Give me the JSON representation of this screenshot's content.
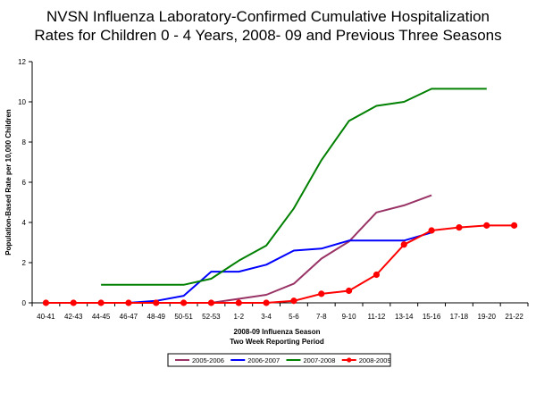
{
  "chart_data": {
    "type": "line",
    "title_line1": "NVSN Influenza Laboratory-Confirmed Cumulative Hospitalization",
    "title_line2": "Rates for Children 0 - 4 Years, 2008- 09 and Previous Three Seasons",
    "xlabel_line1": "2008-09 Influenza Season",
    "xlabel_line2": "Two Week Reporting Period",
    "ylabel": "Population-Based Rate per 10,000 Children",
    "categories": [
      "40-41",
      "42-43",
      "44-45",
      "46-47",
      "48-49",
      "50-51",
      "52-53",
      "1-2",
      "3-4",
      "5-6",
      "7-8",
      "9-10",
      "11-12",
      "13-14",
      "15-16",
      "17-18",
      "19-20",
      "21-22"
    ],
    "ylim": [
      0,
      12
    ],
    "yticks": [
      "0",
      "2",
      "4",
      "6",
      "8",
      "10",
      "12"
    ],
    "grid": false,
    "legend_position": "bottom",
    "series": [
      {
        "name": "2005-2006",
        "color": "#993366",
        "markers": false,
        "values": [
          null,
          null,
          null,
          null,
          0,
          0,
          0,
          0.2,
          0.4,
          0.95,
          2.2,
          3.05,
          4.5,
          4.85,
          5.35,
          null,
          null,
          null
        ]
      },
      {
        "name": "2006-2007",
        "color": "#0000ff",
        "markers": false,
        "values": [
          null,
          null,
          null,
          0,
          0.1,
          0.35,
          1.55,
          1.55,
          1.9,
          2.6,
          2.7,
          3.1,
          3.1,
          3.1,
          3.5,
          null,
          null,
          null
        ]
      },
      {
        "name": "2007-2008",
        "color": "#008000",
        "markers": false,
        "values": [
          null,
          null,
          0.9,
          0.9,
          0.9,
          0.9,
          1.2,
          2.1,
          2.85,
          4.7,
          7.1,
          9.05,
          9.8,
          10.0,
          10.65,
          10.65,
          10.65,
          null
        ]
      },
      {
        "name": "2008-2009",
        "color": "#ff0000",
        "markers": true,
        "values": [
          0,
          0,
          0,
          0,
          0,
          0,
          0,
          0,
          0,
          0.1,
          0.45,
          0.6,
          1.4,
          2.9,
          3.6,
          3.75,
          3.85,
          3.85
        ]
      }
    ]
  }
}
